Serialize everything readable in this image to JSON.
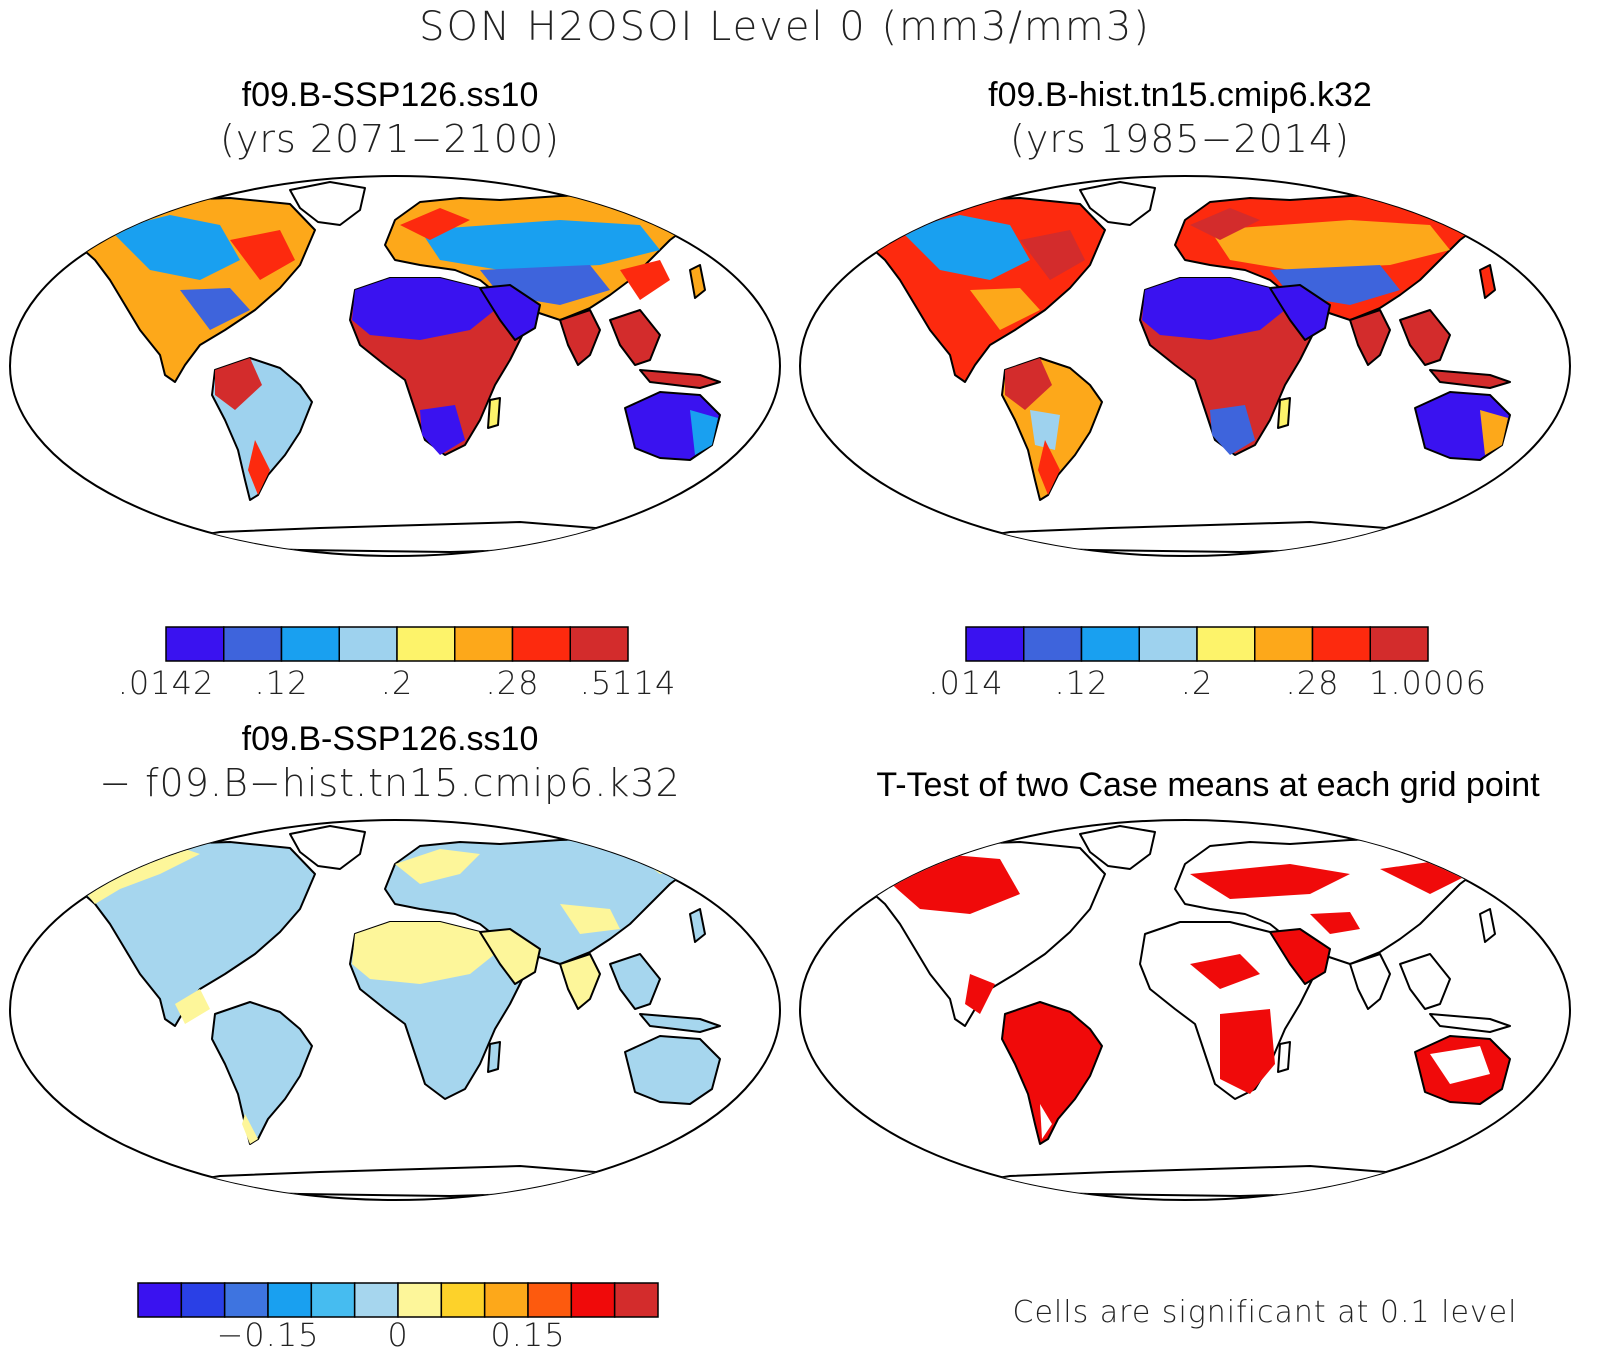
{
  "title": "SON H2OSOI Level 0 (mm3/mm3)",
  "panels": [
    {
      "case": "f09.B-SSP126.ss10",
      "subtitle": "(yrs 2071−2100)",
      "colorbar": {
        "colors": [
          "#3a12f0",
          "#3e64dc",
          "#19a0f0",
          "#9ed2ee",
          "#fdf36a",
          "#fda81a",
          "#fd2a0e",
          "#d32c2c"
        ],
        "labels": [
          ".0142",
          ".12",
          ".2",
          ".28",
          ".5114"
        ]
      }
    },
    {
      "case": "f09.B-hist.tn15.cmip6.k32",
      "subtitle": "(yrs 1985−2014)",
      "colorbar": {
        "colors": [
          "#3a12f0",
          "#3e64dc",
          "#19a0f0",
          "#9ed2ee",
          "#fdf36a",
          "#fda81a",
          "#fd2a0e",
          "#d32c2c"
        ],
        "labels": [
          ".014",
          ".12",
          ".2",
          ".28",
          "1.0006"
        ]
      }
    },
    {
      "case": "f09.B-SSP126.ss10",
      "subtitle": "− f09.B−hist.tn15.cmip6.k32",
      "colorbar": {
        "colors": [
          "#3a12f0",
          "#2a40e6",
          "#3e74e0",
          "#19a0f0",
          "#46bcf0",
          "#a6d6ee",
          "#fdf69a",
          "#fdd22a",
          "#fda81a",
          "#fd5a0e",
          "#f00a0a",
          "#d32c2c"
        ],
        "labels": [
          "−0.15",
          "0",
          "0.15"
        ]
      }
    },
    {
      "title": "T-Test of two Case means at each grid point",
      "note": "Cells are significant at 0.1 level"
    }
  ],
  "icons": {
    "map": "world-map-robinson-icon"
  }
}
